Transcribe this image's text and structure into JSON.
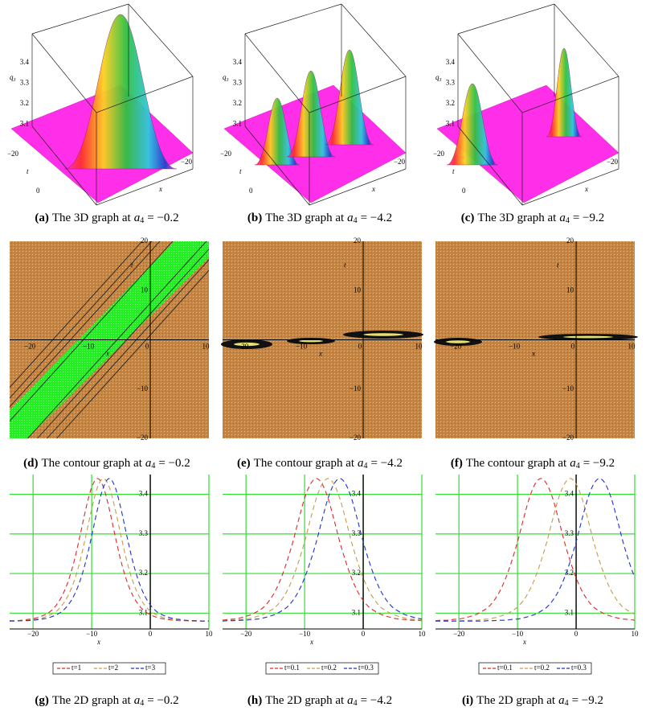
{
  "figure": {
    "panels_3d": [
      {
        "z_ticks": [
          "3.4",
          "3.3",
          "3.2",
          "3.1"
        ],
        "z_label": "q",
        "z_label_sub": "3",
        "t_ticks": [
          "−20",
          "0"
        ],
        "t_label": "t",
        "x_label": "x",
        "x_ticks": [
          "−20"
        ]
      },
      {
        "z_ticks": [
          "3.4",
          "3.3",
          "3.2",
          "3.1"
        ],
        "z_label": "q",
        "z_label_sub": "3",
        "t_ticks": [
          "−20",
          "0"
        ],
        "t_label": "t",
        "x_label": "x",
        "x_ticks": [
          "−20"
        ]
      },
      {
        "z_ticks": [
          "3.4",
          "3.3",
          "3.2",
          "3.1"
        ],
        "z_label": "q",
        "z_label_sub": "3",
        "t_ticks": [
          "−20",
          "0"
        ],
        "t_label": "t",
        "x_label": "x",
        "x_ticks": [
          "−20"
        ]
      }
    ],
    "panels_contour": [
      {
        "xlim": [
          -24,
          10
        ],
        "ylim": [
          -20,
          20
        ],
        "x_label": "x",
        "y_label": "t",
        "x_ticks": [
          {
            "value": -20,
            "label": "−20"
          },
          {
            "value": -10,
            "label": "−10"
          },
          0,
          10
        ],
        "y_ticks": [
          20,
          10,
          {
            "value": -10,
            "label": "−10"
          },
          {
            "value": -20,
            "label": "−20"
          }
        ]
      },
      {
        "xlim": [
          -24,
          10
        ],
        "ylim": [
          -20,
          20
        ],
        "x_label": "x",
        "y_label": "t",
        "x_ticks": [
          {
            "value": -20,
            "label": "−20"
          },
          {
            "value": -10,
            "label": "−10"
          },
          0,
          10
        ],
        "y_ticks": [
          20,
          10,
          {
            "value": -10,
            "label": "−10"
          },
          {
            "value": -20,
            "label": "−20"
          }
        ]
      },
      {
        "xlim": [
          -24,
          10
        ],
        "ylim": [
          -20,
          20
        ],
        "x_label": "x",
        "y_label": "t",
        "x_ticks": [
          {
            "value": -20,
            "label": "−20"
          },
          {
            "value": -10,
            "label": "−10"
          },
          0,
          10
        ],
        "y_ticks": [
          20,
          10,
          {
            "value": -10,
            "label": "−10"
          },
          {
            "value": -20,
            "label": "−20"
          }
        ]
      }
    ],
    "captions": [
      {
        "label": "(a)",
        "text": "The 3D graph at",
        "param": "a",
        "sub": "4",
        "eq": "= −0.2"
      },
      {
        "label": "(b)",
        "text": "The 3D graph at",
        "param": "a",
        "sub": "4",
        "eq": "= −4.2"
      },
      {
        "label": "(c)",
        "text": "The 3D graph at",
        "param": "a",
        "sub": "4",
        "eq": "= −9.2"
      },
      {
        "label": "(d)",
        "text": "The contour graph at",
        "param": "a",
        "sub": "4",
        "eq": "= −0.2"
      },
      {
        "label": "(e)",
        "text": "The contour graph at",
        "param": "a",
        "sub": "4",
        "eq": "= −4.2"
      },
      {
        "label": "(f)",
        "text": "The contour graph at",
        "param": "a",
        "sub": "4",
        "eq": "= −9.2"
      },
      {
        "label": "(g)",
        "text": "The 2D graph at",
        "param": "a",
        "sub": "4",
        "eq": "= −0.2"
      },
      {
        "label": "(h)",
        "text": "The 2D graph at",
        "param": "a",
        "sub": "4",
        "eq": "= −4.2"
      },
      {
        "label": "(i)",
        "text": "The 2D graph at",
        "param": "a",
        "sub": "4",
        "eq": "= −9.2"
      }
    ]
  },
  "chart_data": [
    {
      "type": "line",
      "x_label": "x",
      "grid": true,
      "grid_color": "#33dd33",
      "x": [
        -24,
        -23,
        -22,
        -21,
        -20,
        -19,
        -18,
        -17,
        -16,
        -15,
        -14,
        -13,
        -12,
        -11,
        -10,
        -9,
        -8,
        -7,
        -6,
        -5,
        -4,
        -3,
        -2,
        -1,
        0,
        1,
        2,
        3,
        4,
        5,
        6,
        7,
        8,
        9,
        10
      ],
      "xlim": [
        -24,
        10
      ],
      "xticks": [
        {
          "value": -20,
          "label": "−20"
        },
        {
          "value": -10,
          "label": "−10"
        },
        0,
        10
      ],
      "ylim": [
        3.06,
        3.45
      ],
      "yticks": [
        3.1,
        3.2,
        3.3,
        3.4
      ],
      "series": [
        {
          "name": "t=1",
          "color": "#e02828",
          "values": [
            3.081,
            3.081,
            3.082,
            3.084,
            3.086,
            3.09,
            3.096,
            3.105,
            3.121,
            3.145,
            3.181,
            3.231,
            3.295,
            3.363,
            3.418,
            3.44,
            3.418,
            3.363,
            3.295,
            3.231,
            3.181,
            3.145,
            3.121,
            3.105,
            3.096,
            3.09,
            3.086,
            3.084,
            3.082,
            3.081,
            3.081,
            3.08,
            3.08,
            3.08,
            3.08
          ]
        },
        {
          "name": "t=2",
          "color": "#c89a4a",
          "values": [
            3.08,
            3.081,
            3.081,
            3.082,
            3.084,
            3.086,
            3.09,
            3.096,
            3.105,
            3.121,
            3.145,
            3.181,
            3.231,
            3.295,
            3.363,
            3.418,
            3.44,
            3.418,
            3.363,
            3.295,
            3.231,
            3.181,
            3.145,
            3.121,
            3.105,
            3.096,
            3.09,
            3.086,
            3.084,
            3.082,
            3.081,
            3.081,
            3.08,
            3.08,
            3.08
          ]
        },
        {
          "name": "t=3",
          "color": "#2030d0",
          "values": [
            3.08,
            3.08,
            3.081,
            3.081,
            3.082,
            3.084,
            3.086,
            3.09,
            3.096,
            3.105,
            3.121,
            3.145,
            3.181,
            3.231,
            3.295,
            3.363,
            3.418,
            3.44,
            3.418,
            3.363,
            3.295,
            3.231,
            3.181,
            3.145,
            3.121,
            3.105,
            3.096,
            3.09,
            3.086,
            3.084,
            3.082,
            3.081,
            3.081,
            3.08,
            3.08
          ]
        }
      ]
    },
    {
      "type": "line",
      "x_label": "x",
      "grid": true,
      "grid_color": "#33dd33",
      "x": [
        -24,
        -23,
        -22,
        -21,
        -20,
        -19,
        -18,
        -17,
        -16,
        -15,
        -14,
        -13,
        -12,
        -11,
        -10,
        -9,
        -8,
        -7,
        -6,
        -5,
        -4,
        -3,
        -2,
        -1,
        0,
        1,
        2,
        3,
        4,
        5,
        6,
        7,
        8,
        9,
        10
      ],
      "xlim": [
        -24,
        10
      ],
      "xticks": [
        {
          "value": -20,
          "label": "−20"
        },
        {
          "value": -10,
          "label": "−10"
        },
        0,
        10
      ],
      "ylim": [
        3.06,
        3.45
      ],
      "yticks": [
        3.1,
        3.2,
        3.3,
        3.4
      ],
      "series": [
        {
          "name": "t=0.1",
          "color": "#e02828",
          "values": [
            3.082,
            3.084,
            3.085,
            3.088,
            3.092,
            3.097,
            3.105,
            3.115,
            3.132,
            3.156,
            3.189,
            3.231,
            3.28,
            3.337,
            3.39,
            3.426,
            3.44,
            3.426,
            3.39,
            3.337,
            3.28,
            3.231,
            3.189,
            3.156,
            3.132,
            3.115,
            3.105,
            3.097,
            3.092,
            3.088,
            3.085,
            3.084,
            3.082,
            3.082,
            3.081
          ]
        },
        {
          "name": "t=0.2",
          "color": "#c89a4a",
          "values": [
            3.081,
            3.082,
            3.082,
            3.084,
            3.085,
            3.088,
            3.092,
            3.097,
            3.105,
            3.115,
            3.132,
            3.156,
            3.189,
            3.231,
            3.28,
            3.337,
            3.39,
            3.426,
            3.44,
            3.426,
            3.39,
            3.337,
            3.28,
            3.231,
            3.189,
            3.156,
            3.132,
            3.115,
            3.105,
            3.097,
            3.092,
            3.088,
            3.085,
            3.084,
            3.082
          ]
        },
        {
          "name": "t=0.3",
          "color": "#2030d0",
          "values": [
            3.08,
            3.081,
            3.081,
            3.082,
            3.082,
            3.084,
            3.085,
            3.088,
            3.092,
            3.097,
            3.105,
            3.115,
            3.132,
            3.156,
            3.189,
            3.231,
            3.28,
            3.337,
            3.39,
            3.426,
            3.44,
            3.426,
            3.39,
            3.337,
            3.28,
            3.231,
            3.189,
            3.156,
            3.132,
            3.115,
            3.105,
            3.097,
            3.092,
            3.088,
            3.085
          ]
        }
      ]
    },
    {
      "type": "line",
      "x_label": "x",
      "grid": true,
      "grid_color": "#33dd33",
      "x": [
        -24,
        -23,
        -22,
        -21,
        -20,
        -19,
        -18,
        -17,
        -16,
        -15,
        -14,
        -13,
        -12,
        -11,
        -10,
        -9,
        -8,
        -7,
        -6,
        -5,
        -4,
        -3,
        -2,
        -1,
        0,
        1,
        2,
        3,
        4,
        5,
        6,
        7,
        8,
        9,
        10
      ],
      "xlim": [
        -24,
        10
      ],
      "xticks": [
        {
          "value": -20,
          "label": "−20"
        },
        {
          "value": -10,
          "label": "−10"
        },
        0,
        10
      ],
      "ylim": [
        3.06,
        3.45
      ],
      "yticks": [
        3.1,
        3.2,
        3.3,
        3.4
      ],
      "series": [
        {
          "name": "t=0.1",
          "color": "#e02828",
          "values": [
            3.081,
            3.082,
            3.082,
            3.084,
            3.085,
            3.088,
            3.092,
            3.097,
            3.105,
            3.115,
            3.132,
            3.156,
            3.189,
            3.231,
            3.28,
            3.337,
            3.39,
            3.426,
            3.44,
            3.426,
            3.39,
            3.337,
            3.28,
            3.231,
            3.189,
            3.156,
            3.132,
            3.115,
            3.105,
            3.097,
            3.092,
            3.088,
            3.085,
            3.084,
            3.082
          ]
        },
        {
          "name": "t=0.2",
          "color": "#c89a4a",
          "values": [
            3.08,
            3.08,
            3.08,
            3.08,
            3.081,
            3.081,
            3.082,
            3.082,
            3.084,
            3.085,
            3.088,
            3.092,
            3.097,
            3.105,
            3.115,
            3.132,
            3.156,
            3.189,
            3.231,
            3.28,
            3.337,
            3.39,
            3.426,
            3.44,
            3.426,
            3.39,
            3.337,
            3.28,
            3.231,
            3.189,
            3.156,
            3.132,
            3.115,
            3.105,
            3.097
          ]
        },
        {
          "name": "t=0.3",
          "color": "#2030d0",
          "values": [
            3.08,
            3.08,
            3.08,
            3.08,
            3.08,
            3.08,
            3.08,
            3.08,
            3.08,
            3.081,
            3.081,
            3.082,
            3.082,
            3.084,
            3.085,
            3.088,
            3.092,
            3.097,
            3.105,
            3.115,
            3.132,
            3.156,
            3.189,
            3.231,
            3.28,
            3.337,
            3.39,
            3.426,
            3.44,
            3.426,
            3.39,
            3.337,
            3.28,
            3.231,
            3.189
          ]
        }
      ]
    }
  ]
}
